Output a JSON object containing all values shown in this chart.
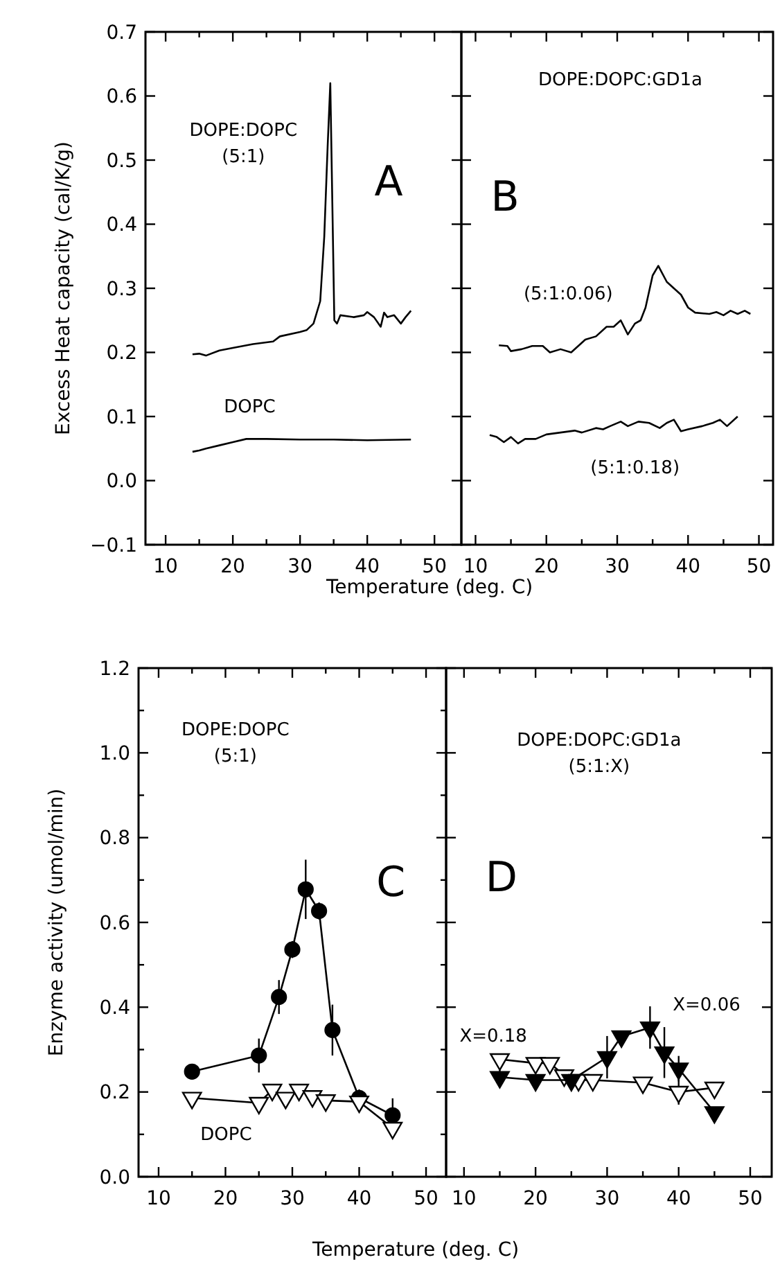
{
  "chart_data": [
    {
      "type": "line",
      "title": "DOPE:DOPC",
      "subtitle": "(5:1)",
      "xlabel": "Temperature (deg. C)",
      "ylabel": "Excess Heat capacity (cal/K/g)",
      "xlim": [
        7,
        54
      ],
      "ylim": [
        -0.1,
        0.7
      ],
      "xticks": [
        10,
        {
          "value": 15,
          "label": null
        },
        20,
        {
          "value": 25,
          "label": null
        },
        30,
        {
          "value": 35,
          "label": null
        },
        40,
        {
          "value": 45,
          "label": null
        },
        50
      ],
      "yticks": [
        {
          "value": -0.1,
          "label": "−0.1"
        },
        {
          "value": 0,
          "label": "0.0"
        },
        0.1,
        0.2,
        0.3,
        0.4,
        0.5,
        0.6,
        0.7
      ],
      "marker": "none",
      "line_style": "solid",
      "grid": false,
      "annotations": [
        "A",
        "DOPC"
      ],
      "series": [
        {
          "color": "#000000",
          "x": [
            14,
            15,
            16,
            18,
            20,
            23,
            26,
            27,
            30,
            31,
            32,
            33,
            33.6,
            34.1,
            34.5,
            35.1,
            35.5,
            36,
            38,
            39.5,
            40,
            41,
            42,
            42.5,
            43,
            44,
            45,
            45.7,
            46.5
          ],
          "values": [
            0.197,
            0.198,
            0.195,
            0.203,
            0.207,
            0.213,
            0.217,
            0.225,
            0.232,
            0.235,
            0.245,
            0.28,
            0.38,
            0.52,
            0.62,
            0.25,
            0.245,
            0.258,
            0.255,
            0.258,
            0.263,
            0.255,
            0.24,
            0.262,
            0.255,
            0.258,
            0.245,
            0.255,
            0.265
          ]
        },
        {
          "color": "#000000",
          "x": [
            14,
            15,
            16,
            18,
            20,
            22,
            25,
            30,
            35,
            40,
            46.5
          ],
          "values": [
            0.045,
            0.047,
            0.05,
            0.055,
            0.06,
            0.065,
            0.065,
            0.064,
            0.064,
            0.063,
            0.064
          ]
        }
      ]
    },
    {
      "type": "line",
      "title": "DOPE:DOPC:GD1a",
      "xlim": [
        8,
        52
      ],
      "ylim": [
        -0.1,
        0.7
      ],
      "tick_labels": "x",
      "xticks": [
        10,
        {
          "value": 15,
          "label": null
        },
        20,
        {
          "value": 25,
          "label": null
        },
        30,
        {
          "value": 35,
          "label": null
        },
        40,
        {
          "value": 45,
          "label": null
        },
        50
      ],
      "yticks": [
        -0.1,
        0,
        0.1,
        0.2,
        0.3,
        0.4,
        0.5,
        0.6,
        0.7
      ],
      "marker": "none",
      "line_style": "solid",
      "grid": false,
      "annotations": [
        "B",
        "(5:1:0.06)",
        "(5:1:0.18)"
      ],
      "series": [
        {
          "color": "#000000",
          "x": [
            13.3,
            14.5,
            15,
            16.5,
            18,
            19.5,
            20.5,
            22,
            23.5,
            24.5,
            25.5,
            27,
            28.5,
            29.5,
            30.5,
            31.5,
            32.5,
            33.3,
            34,
            35,
            35.8,
            37,
            38,
            39,
            40,
            41,
            43,
            44,
            45,
            46,
            47,
            48,
            48.8
          ],
          "values": [
            0.211,
            0.21,
            0.202,
            0.205,
            0.21,
            0.21,
            0.2,
            0.205,
            0.2,
            0.21,
            0.22,
            0.225,
            0.24,
            0.24,
            0.25,
            0.228,
            0.245,
            0.25,
            0.27,
            0.32,
            0.335,
            0.31,
            0.3,
            0.29,
            0.27,
            0.262,
            0.26,
            0.263,
            0.258,
            0.265,
            0.26,
            0.265,
            0.26
          ]
        },
        {
          "color": "#000000",
          "x": [
            12,
            13,
            14,
            15,
            16,
            17,
            18.5,
            20,
            22,
            24,
            25,
            27,
            28,
            29,
            30.5,
            31.5,
            33,
            34.5,
            36,
            37,
            38,
            39,
            40,
            42,
            43.5,
            44.5,
            45.5,
            47
          ],
          "values": [
            0.071,
            0.068,
            0.06,
            0.068,
            0.058,
            0.065,
            0.065,
            0.072,
            0.075,
            0.078,
            0.075,
            0.082,
            0.08,
            0.085,
            0.092,
            0.085,
            0.092,
            0.09,
            0.082,
            0.09,
            0.095,
            0.077,
            0.08,
            0.085,
            0.09,
            0.095,
            0.085,
            0.1
          ]
        }
      ]
    },
    {
      "type": "line",
      "title": "DOPE:DOPC",
      "subtitle": "(5:1)",
      "xlabel": "Temperature (deg. C)",
      "ylabel": "Enzyme activity (umol/min)",
      "xlim": [
        7,
        53
      ],
      "ylim": [
        0,
        1.2
      ],
      "xticks": [
        10,
        {
          "value": 15,
          "label": null
        },
        20,
        {
          "value": 25,
          "label": null
        },
        30,
        {
          "value": 35,
          "label": null
        },
        40,
        {
          "value": 45,
          "label": null
        },
        50
      ],
      "yticks": [
        {
          "value": 0,
          "label": "0.0"
        },
        {
          "value": 0.1,
          "label": null
        },
        0.2,
        {
          "value": 0.3,
          "label": null
        },
        0.4,
        {
          "value": 0.5,
          "label": null
        },
        0.6,
        {
          "value": 0.7,
          "label": null
        },
        0.8,
        {
          "value": 0.9,
          "label": null
        },
        {
          "value": 1,
          "label": "1.0"
        },
        {
          "value": 1.1,
          "label": null
        },
        1.2
      ],
      "line_style": "solid",
      "grid": false,
      "annotations": [
        "C",
        "DOPC"
      ],
      "series": [
        {
          "color": "#000000",
          "marker": "circle",
          "x": [
            15,
            25,
            28,
            30,
            32,
            34,
            36,
            40,
            45
          ],
          "values": [
            0.248,
            0.286,
            0.424,
            0.536,
            0.678,
            0.627,
            0.346,
            0.186,
            0.145
          ],
          "errors": [
            null,
            0.04,
            0.04,
            0.02,
            0.07,
            0.02,
            0.06,
            0.02,
            0.04
          ]
        },
        {
          "color": "#ffffff",
          "marker": "triangle",
          "x": [
            15,
            25,
            27,
            29,
            31,
            33,
            35,
            40,
            45
          ],
          "values": [
            0.186,
            0.174,
            0.205,
            0.186,
            0.205,
            0.19,
            0.18,
            0.177,
            0.115
          ]
        }
      ]
    },
    {
      "type": "line",
      "title": "DOPE:DOPC:GD1a",
      "subtitle": "(5:1:X)",
      "xlim": [
        7.5,
        53
      ],
      "ylim": [
        0,
        1.2
      ],
      "tick_labels": "x",
      "xticks": [
        10,
        {
          "value": 15,
          "label": null
        },
        20,
        {
          "value": 25,
          "label": null
        },
        30,
        {
          "value": 35,
          "label": null
        },
        40,
        {
          "value": 45,
          "label": null
        },
        50
      ],
      "yticks": [
        0,
        0.2,
        0.4,
        0.6,
        0.8,
        1,
        1.2
      ],
      "line_style": "solid",
      "grid": false,
      "annotations": [
        "D",
        "X=0.18",
        "X=0.06"
      ],
      "series": [
        {
          "color": "#ffffff",
          "marker": "triangle",
          "x": [
            15,
            20,
            22,
            24,
            26,
            28,
            35,
            40,
            45
          ],
          "values": [
            0.277,
            0.268,
            0.268,
            0.239,
            0.228,
            0.228,
            0.222,
            0.2,
            0.21
          ],
          "errors": [
            null,
            null,
            null,
            null,
            null,
            null,
            null,
            0.03,
            null
          ]
        },
        {
          "color": "#000000",
          "marker": "triangle",
          "x": [
            15,
            20,
            25,
            30,
            32,
            36,
            38,
            40,
            45
          ],
          "values": [
            0.235,
            0.228,
            0.228,
            0.282,
            0.331,
            0.352,
            0.293,
            0.255,
            0.152
          ],
          "errors": [
            0.02,
            null,
            null,
            0.05,
            null,
            0.05,
            0.06,
            0.03,
            null
          ]
        }
      ]
    }
  ]
}
